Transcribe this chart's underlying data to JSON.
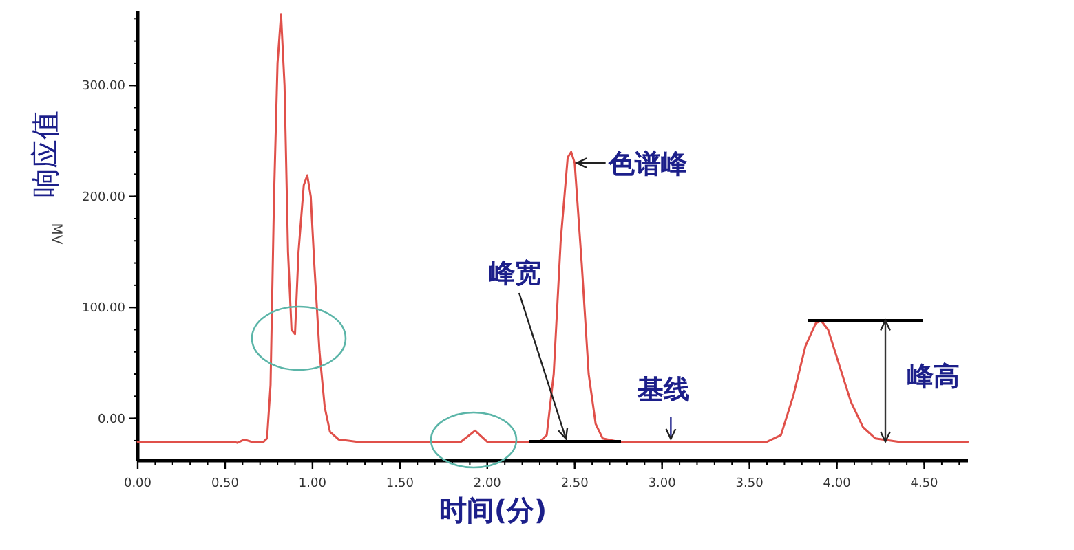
{
  "chart_data": {
    "type": "line",
    "xlabel": "时间(分)",
    "ylabel": "响应值",
    "y2label": "MV",
    "xlim": [
      0,
      4.75
    ],
    "ylim": [
      -38,
      367
    ],
    "xticks": [
      {
        "value": 0,
        "label": "0.00"
      },
      {
        "value": 0.5,
        "label": "0.50"
      },
      {
        "value": 1,
        "label": "1.00"
      },
      {
        "value": 1.5,
        "label": "1.50"
      },
      {
        "value": 2,
        "label": "2.00"
      },
      {
        "value": 2.5,
        "label": "2.50"
      },
      {
        "value": 3,
        "label": "3.00"
      },
      {
        "value": 3.5,
        "label": "3.50"
      },
      {
        "value": 4,
        "label": "4.00"
      },
      {
        "value": 4.5,
        "label": "4.50"
      }
    ],
    "yticks": [
      {
        "value": 0,
        "label": "0.00"
      },
      {
        "value": 100,
        "label": "100.00"
      },
      {
        "value": 200,
        "label": "200.00"
      },
      {
        "value": 300,
        "label": "300.00"
      }
    ],
    "grid": false,
    "marker": "none",
    "line_style": "solid",
    "series": [
      {
        "color": "#e0504a",
        "x": [
          0,
          0.55,
          0.57,
          0.61,
          0.65,
          0.72,
          0.74,
          0.76,
          0.78,
          0.8,
          0.82,
          0.84,
          0.86,
          0.88,
          0.9,
          0.92,
          0.95,
          0.97,
          0.99,
          1.01,
          1.04,
          1.07,
          1.1,
          1.15,
          1.25,
          1.85,
          1.93,
          2.0,
          2.3,
          2.34,
          2.38,
          2.42,
          2.46,
          2.48,
          2.5,
          2.54,
          2.58,
          2.62,
          2.66,
          2.75,
          3.6,
          3.68,
          3.75,
          3.82,
          3.88,
          3.91,
          3.95,
          4.02,
          4.08,
          4.15,
          4.22,
          4.35,
          4.75
        ],
        "values": [
          -21,
          -21,
          -22,
          -19,
          -21,
          -21,
          -18,
          30,
          200,
          320,
          364,
          300,
          150,
          80,
          76,
          150,
          210,
          219,
          200,
          140,
          60,
          10,
          -12,
          -19,
          -21,
          -21,
          -11,
          -21,
          -21,
          -15,
          40,
          160,
          235,
          240,
          230,
          140,
          40,
          -5,
          -18,
          -21,
          -21,
          -15,
          20,
          65,
          86,
          88,
          80,
          45,
          15,
          -8,
          -18,
          -21,
          -21
        ]
      }
    ],
    "annotations": [
      {
        "text": "色谱峰",
        "x": 2.48,
        "y": 240
      },
      "峰宽",
      {
        "text": "基线",
        "x": 3.05,
        "y": -21
      },
      "峰高"
    ]
  }
}
